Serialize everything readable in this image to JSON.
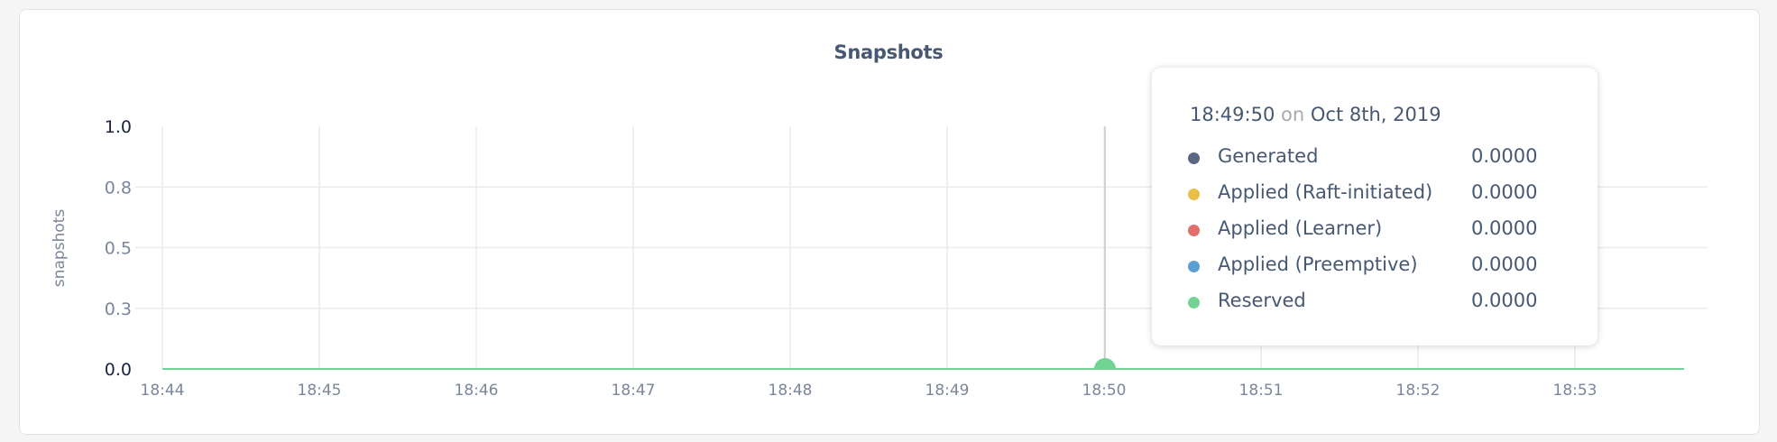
{
  "chart_data": {
    "type": "line",
    "title": "Snapshots",
    "ylabel": "snapshots",
    "xlabel": "",
    "ylim": [
      0,
      1
    ],
    "yticks": [
      "0.0",
      "0.3",
      "0.5",
      "0.8",
      "1.0"
    ],
    "ytick_values": [
      0,
      0.25,
      0.5,
      0.75,
      1.0
    ],
    "x_ticks": [
      "18:44",
      "18:45",
      "18:46",
      "18:47",
      "18:48",
      "18:49",
      "18:50",
      "18:51",
      "18:52",
      "18:53"
    ],
    "x_range": [
      "18:44",
      "18:53:40"
    ],
    "grid": true,
    "series": [
      {
        "name": "Generated",
        "color": "#5b6883",
        "values": [
          0,
          0,
          0,
          0,
          0,
          0,
          0,
          0,
          0,
          0
        ]
      },
      {
        "name": "Applied (Raft-initiated)",
        "color": "#eabe47",
        "values": [
          0,
          0,
          0,
          0,
          0,
          0,
          0,
          0,
          0,
          0
        ]
      },
      {
        "name": "Applied (Learner)",
        "color": "#e36e6c",
        "values": [
          0,
          0,
          0,
          0,
          0,
          0,
          0,
          0,
          0,
          0
        ]
      },
      {
        "name": "Applied (Preemptive)",
        "color": "#5a9fd2",
        "values": [
          0,
          0,
          0,
          0,
          0,
          0,
          0,
          0,
          0,
          0
        ]
      },
      {
        "name": "Reserved",
        "color": "#72d395",
        "values": [
          0,
          0,
          0,
          0,
          0,
          0,
          0,
          0,
          0,
          0
        ]
      }
    ],
    "hover": "18:50"
  },
  "tooltip": {
    "time": "18:49:50",
    "on": "on",
    "date": "Oct 8th, 2019",
    "rows": [
      {
        "label": "Generated",
        "value": "0.0000"
      },
      {
        "label": "Applied (Raft-initiated)",
        "value": "0.0000"
      },
      {
        "label": "Applied (Learner)",
        "value": "0.0000"
      },
      {
        "label": "Applied (Preemptive)",
        "value": "0.0000"
      },
      {
        "label": "Reserved",
        "value": "0.0000"
      }
    ]
  }
}
